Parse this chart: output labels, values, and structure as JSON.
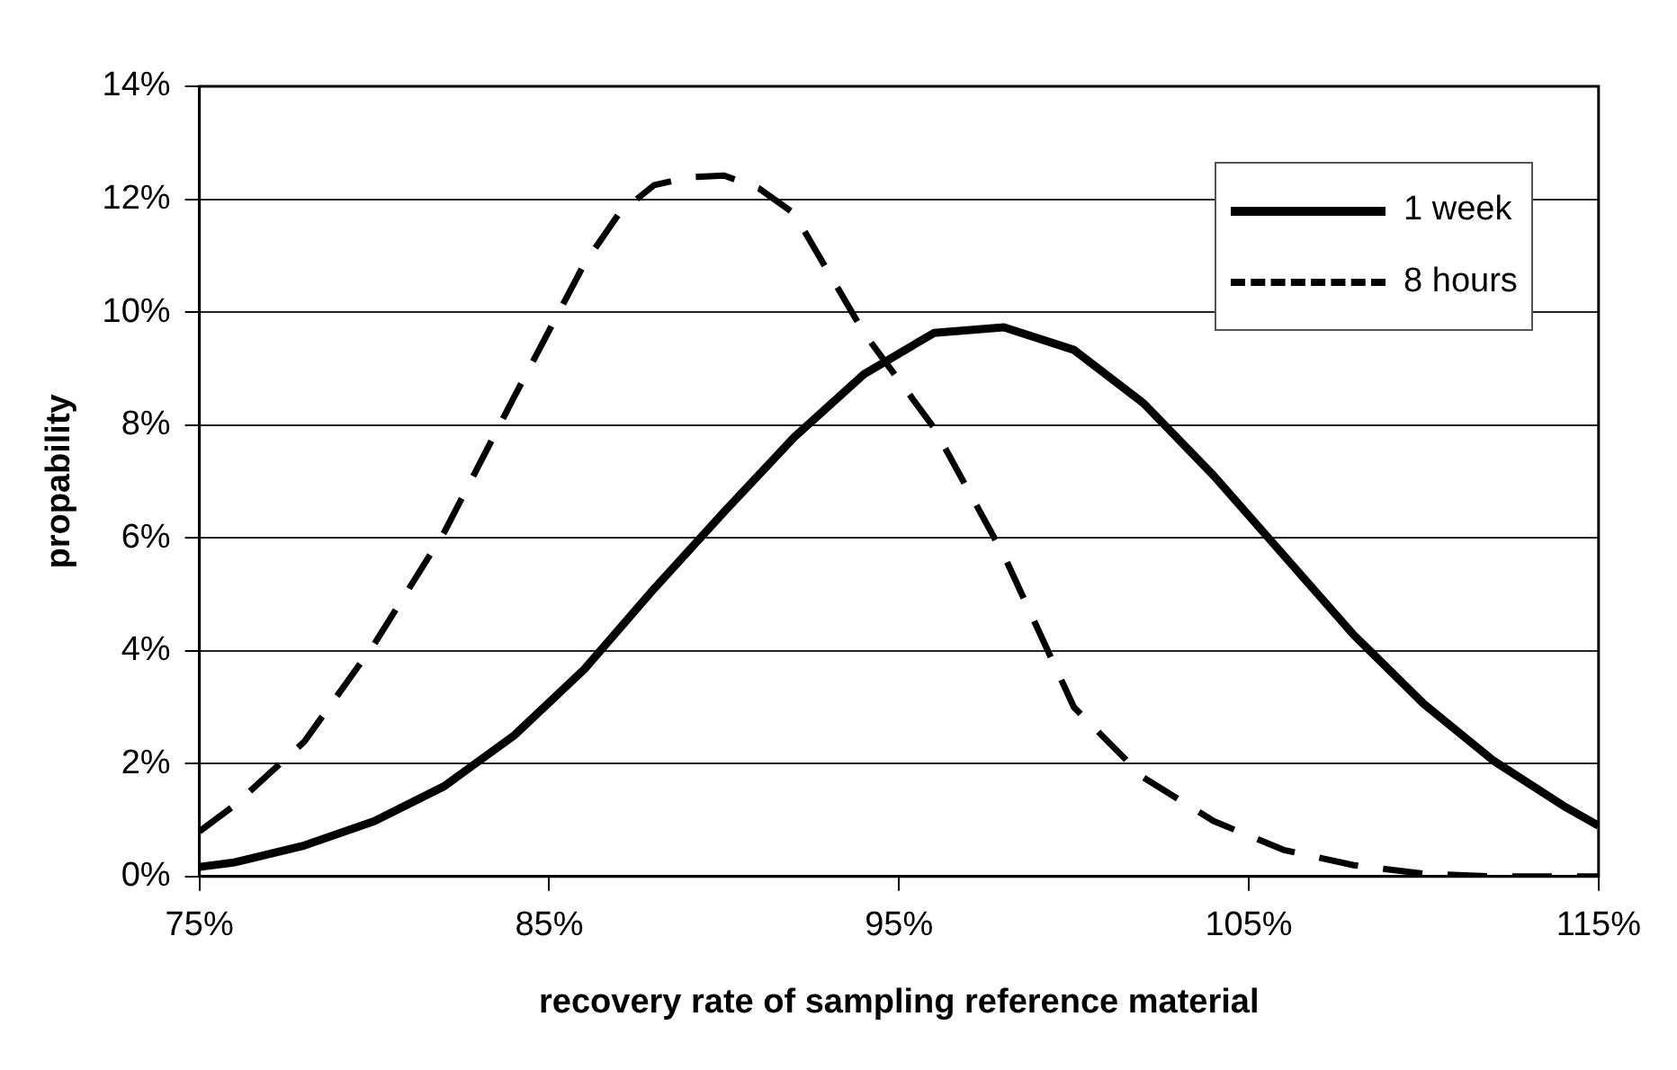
{
  "chart_data": {
    "type": "line",
    "xlabel": "recovery rate of sampling reference material",
    "ylabel": "propability",
    "xlim": [
      75,
      115
    ],
    "xticks": [
      {
        "value": 75,
        "label": "75%"
      },
      {
        "value": 85,
        "label": "85%"
      },
      {
        "value": 95,
        "label": "95%"
      },
      {
        "value": 105,
        "label": "105%"
      },
      {
        "value": 115,
        "label": "115%"
      }
    ],
    "ylim": [
      0,
      14
    ],
    "yticks": [
      {
        "value": 0,
        "label": "0%"
      },
      {
        "value": 2,
        "label": "2%"
      },
      {
        "value": 4,
        "label": "4%"
      },
      {
        "value": 6,
        "label": "6%"
      },
      {
        "value": 8,
        "label": "8%"
      },
      {
        "value": 10,
        "label": "10%"
      },
      {
        "value": 12,
        "label": "12%"
      },
      {
        "value": 14,
        "label": "14%"
      }
    ],
    "grid": "y",
    "legend": "top right",
    "marker": "none",
    "series": [
      {
        "name": "1 week",
        "color": "#000000",
        "line_style": "solid",
        "x": [
          75,
          76,
          78,
          80,
          82,
          84,
          86,
          88,
          90,
          92,
          94,
          96,
          98,
          100,
          102,
          104,
          106,
          108,
          110,
          112,
          114,
          115
        ],
        "values": [
          0.17,
          0.25,
          0.55,
          0.98,
          1.6,
          2.5,
          3.67,
          5.1,
          6.46,
          7.78,
          8.9,
          9.63,
          9.73,
          9.33,
          8.38,
          7.1,
          5.69,
          4.28,
          3.06,
          2.05,
          1.25,
          0.9
        ]
      },
      {
        "name": "8 hours",
        "color": "#000000",
        "line_style": "dashed",
        "x": [
          75,
          76,
          78,
          80,
          82,
          84,
          86,
          87,
          88,
          89,
          90,
          91,
          92,
          94,
          96,
          98,
          100,
          102,
          104,
          106,
          108,
          110,
          112,
          115
        ],
        "values": [
          0.8,
          1.26,
          2.39,
          4.12,
          6.1,
          8.5,
          10.85,
          11.75,
          12.25,
          12.39,
          12.42,
          12.19,
          11.75,
          9.63,
          7.95,
          5.69,
          3.0,
          1.75,
          0.98,
          0.47,
          0.2,
          0.05,
          0,
          0
        ]
      }
    ]
  }
}
